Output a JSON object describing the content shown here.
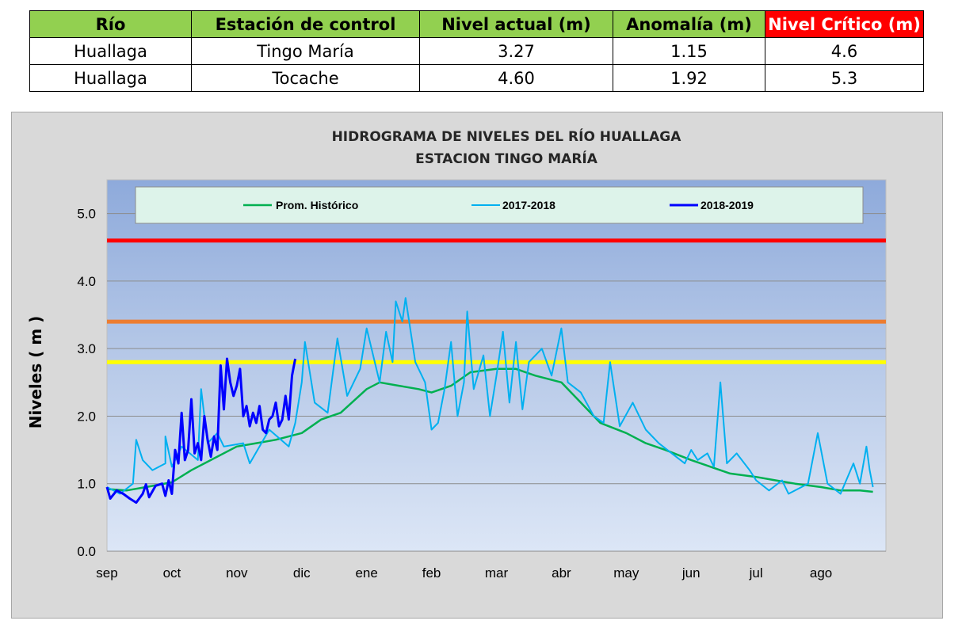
{
  "table": {
    "headers": [
      "Río",
      "Estación de control",
      "Nivel actual (m)",
      "Anomalía (m)",
      "Nivel Crítico (m)"
    ],
    "rows": [
      [
        "Huallaga",
        "Tingo María",
        "3.27",
        "1.15",
        "4.6"
      ],
      [
        "Huallaga",
        "Tocache",
        "4.60",
        "1.92",
        "5.3"
      ]
    ],
    "colors": {
      "header_bg": "#92D050",
      "critical_header_bg": "#FF0000"
    }
  },
  "chart_data": {
    "type": "line",
    "title": [
      "HIDROGRAMA DE NIVELES DEL RÍO HUALLAGA",
      "ESTACION TINGO MARÍA"
    ],
    "ylabel": "Niveles ( m )",
    "xlabel": "",
    "ylim": [
      0,
      5.5
    ],
    "yticks": [
      "0.0",
      "1.0",
      "2.0",
      "3.0",
      "4.0",
      "5.0"
    ],
    "months": [
      "sep",
      "oct",
      "nov",
      "dic",
      "ene",
      "feb",
      "mar",
      "abr",
      "may",
      "jun",
      "jul",
      "ago"
    ],
    "grid": true,
    "legend": "top",
    "thresholds": [
      {
        "value": 4.6,
        "color": "#FF0000"
      },
      {
        "value": 3.4,
        "color": "#ED7D31"
      },
      {
        "value": 2.8,
        "color": "#FFFF00"
      }
    ],
    "series": [
      {
        "name": "Prom. Histórico",
        "color": "#00B050",
        "width": 2.5,
        "points": [
          [
            0,
            0.92
          ],
          [
            0.3,
            0.9
          ],
          [
            0.6,
            0.95
          ],
          [
            1,
            1.02
          ],
          [
            1.3,
            1.2
          ],
          [
            1.5,
            1.3
          ],
          [
            2,
            1.55
          ],
          [
            2.3,
            1.6
          ],
          [
            2.6,
            1.65
          ],
          [
            3,
            1.75
          ],
          [
            3.3,
            1.95
          ],
          [
            3.6,
            2.05
          ],
          [
            4,
            2.4
          ],
          [
            4.2,
            2.5
          ],
          [
            4.5,
            2.45
          ],
          [
            4.8,
            2.4
          ],
          [
            5,
            2.35
          ],
          [
            5.3,
            2.45
          ],
          [
            5.6,
            2.65
          ],
          [
            6,
            2.7
          ],
          [
            6.3,
            2.7
          ],
          [
            6.6,
            2.6
          ],
          [
            7,
            2.5
          ],
          [
            7.3,
            2.2
          ],
          [
            7.6,
            1.9
          ],
          [
            8,
            1.75
          ],
          [
            8.3,
            1.6
          ],
          [
            8.6,
            1.5
          ],
          [
            9,
            1.35
          ],
          [
            9.3,
            1.25
          ],
          [
            9.6,
            1.15
          ],
          [
            10,
            1.1
          ],
          [
            10.3,
            1.05
          ],
          [
            10.6,
            1.0
          ],
          [
            11,
            0.95
          ],
          [
            11.3,
            0.9
          ],
          [
            11.6,
            0.9
          ],
          [
            11.8,
            0.88
          ]
        ]
      },
      {
        "name": "2017-2018",
        "color": "#00B0F0",
        "width": 2,
        "points": [
          [
            0,
            0.95
          ],
          [
            0.2,
            0.85
          ],
          [
            0.4,
            1.0
          ],
          [
            0.45,
            1.65
          ],
          [
            0.55,
            1.35
          ],
          [
            0.7,
            1.2
          ],
          [
            0.9,
            1.3
          ],
          [
            0.9,
            1.7
          ],
          [
            1,
            1.25
          ],
          [
            1.15,
            1.55
          ],
          [
            1.4,
            1.35
          ],
          [
            1.45,
            2.4
          ],
          [
            1.55,
            1.6
          ],
          [
            1.7,
            1.75
          ],
          [
            1.8,
            1.55
          ],
          [
            2.1,
            1.6
          ],
          [
            2.2,
            1.3
          ],
          [
            2.5,
            1.8
          ],
          [
            2.8,
            1.55
          ],
          [
            2.9,
            1.9
          ],
          [
            3.0,
            2.5
          ],
          [
            3.05,
            3.1
          ],
          [
            3.2,
            2.2
          ],
          [
            3.4,
            2.05
          ],
          [
            3.55,
            3.15
          ],
          [
            3.7,
            2.3
          ],
          [
            3.9,
            2.7
          ],
          [
            4.0,
            3.3
          ],
          [
            4.2,
            2.5
          ],
          [
            4.3,
            3.25
          ],
          [
            4.4,
            2.8
          ],
          [
            4.45,
            3.7
          ],
          [
            4.55,
            3.4
          ],
          [
            4.6,
            3.75
          ],
          [
            4.75,
            2.8
          ],
          [
            4.9,
            2.5
          ],
          [
            5.0,
            1.8
          ],
          [
            5.1,
            1.9
          ],
          [
            5.2,
            2.4
          ],
          [
            5.3,
            3.1
          ],
          [
            5.4,
            2.0
          ],
          [
            5.5,
            2.5
          ],
          [
            5.55,
            3.55
          ],
          [
            5.65,
            2.4
          ],
          [
            5.8,
            2.9
          ],
          [
            5.9,
            2.0
          ],
          [
            6.0,
            2.6
          ],
          [
            6.1,
            3.25
          ],
          [
            6.2,
            2.2
          ],
          [
            6.3,
            3.1
          ],
          [
            6.4,
            2.1
          ],
          [
            6.5,
            2.8
          ],
          [
            6.7,
            3.0
          ],
          [
            6.85,
            2.6
          ],
          [
            7.0,
            3.3
          ],
          [
            7.1,
            2.5
          ],
          [
            7.3,
            2.35
          ],
          [
            7.5,
            2.0
          ],
          [
            7.65,
            1.9
          ],
          [
            7.75,
            2.8
          ],
          [
            7.9,
            1.85
          ],
          [
            8.1,
            2.2
          ],
          [
            8.3,
            1.8
          ],
          [
            8.5,
            1.6
          ],
          [
            8.7,
            1.45
          ],
          [
            8.9,
            1.3
          ],
          [
            9.0,
            1.5
          ],
          [
            9.1,
            1.35
          ],
          [
            9.25,
            1.45
          ],
          [
            9.35,
            1.25
          ],
          [
            9.45,
            2.5
          ],
          [
            9.55,
            1.3
          ],
          [
            9.7,
            1.45
          ],
          [
            9.9,
            1.2
          ],
          [
            10.0,
            1.05
          ],
          [
            10.2,
            0.9
          ],
          [
            10.4,
            1.05
          ],
          [
            10.5,
            0.85
          ],
          [
            10.7,
            0.95
          ],
          [
            10.8,
            1.0
          ],
          [
            10.95,
            1.75
          ],
          [
            11.1,
            1.0
          ],
          [
            11.3,
            0.85
          ],
          [
            11.5,
            1.3
          ],
          [
            11.6,
            1.0
          ],
          [
            11.7,
            1.55
          ],
          [
            11.75,
            1.2
          ],
          [
            11.8,
            0.95
          ]
        ]
      },
      {
        "name": "2018-2019",
        "color": "#0000FF",
        "width": 3,
        "points": [
          [
            0,
            0.95
          ],
          [
            0.05,
            0.78
          ],
          [
            0.15,
            0.9
          ],
          [
            0.25,
            0.85
          ],
          [
            0.35,
            0.78
          ],
          [
            0.45,
            0.72
          ],
          [
            0.55,
            0.85
          ],
          [
            0.6,
            0.99
          ],
          [
            0.65,
            0.8
          ],
          [
            0.75,
            0.97
          ],
          [
            0.85,
            1.0
          ],
          [
            0.9,
            0.82
          ],
          [
            0.95,
            1.05
          ],
          [
            1.0,
            0.85
          ],
          [
            1.05,
            1.5
          ],
          [
            1.1,
            1.3
          ],
          [
            1.15,
            2.05
          ],
          [
            1.2,
            1.35
          ],
          [
            1.25,
            1.5
          ],
          [
            1.3,
            2.25
          ],
          [
            1.35,
            1.45
          ],
          [
            1.4,
            1.6
          ],
          [
            1.45,
            1.35
          ],
          [
            1.5,
            2.0
          ],
          [
            1.55,
            1.65
          ],
          [
            1.6,
            1.4
          ],
          [
            1.65,
            1.7
          ],
          [
            1.7,
            1.5
          ],
          [
            1.75,
            2.75
          ],
          [
            1.8,
            2.1
          ],
          [
            1.85,
            2.85
          ],
          [
            1.9,
            2.5
          ],
          [
            1.95,
            2.3
          ],
          [
            2.0,
            2.45
          ],
          [
            2.05,
            2.7
          ],
          [
            2.1,
            2.0
          ],
          [
            2.15,
            2.15
          ],
          [
            2.2,
            1.85
          ],
          [
            2.25,
            2.05
          ],
          [
            2.3,
            1.9
          ],
          [
            2.35,
            2.15
          ],
          [
            2.4,
            1.8
          ],
          [
            2.45,
            1.75
          ],
          [
            2.5,
            1.95
          ],
          [
            2.55,
            2.0
          ],
          [
            2.6,
            2.2
          ],
          [
            2.65,
            1.85
          ],
          [
            2.7,
            1.95
          ],
          [
            2.75,
            2.3
          ],
          [
            2.8,
            1.95
          ],
          [
            2.85,
            2.6
          ],
          [
            2.9,
            2.85
          ]
        ]
      }
    ]
  }
}
